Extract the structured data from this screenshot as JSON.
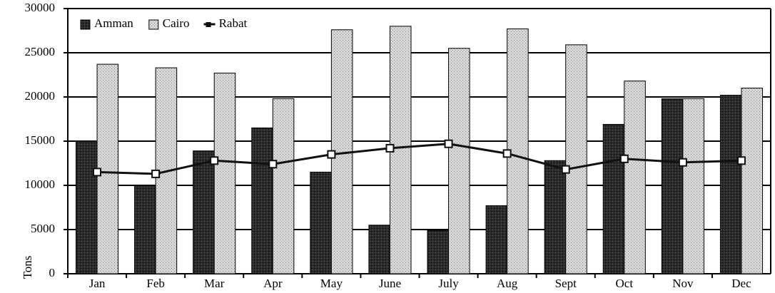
{
  "chart_data": {
    "type": "bar",
    "y_label": "Tons",
    "categories": [
      "Jan",
      "Feb",
      "Mar",
      "Apr",
      "May",
      "June",
      "July",
      "Aug",
      "Sept",
      "Oct",
      "Nov",
      "Dec"
    ],
    "series": [
      {
        "name": "Amman",
        "type": "bar",
        "color": "#2a2a2a",
        "values": [
          15000,
          10000,
          13900,
          16500,
          11500,
          5500,
          4900,
          7700,
          12800,
          16900,
          19800,
          20200
        ]
      },
      {
        "name": "Cairo",
        "type": "bar",
        "color": "#d8d8d8",
        "values": [
          23700,
          23300,
          22700,
          19800,
          27600,
          28000,
          25500,
          27700,
          25900,
          21800,
          19800,
          21000
        ]
      },
      {
        "name": "Rabat",
        "type": "line",
        "color": "#111111",
        "values": [
          11500,
          11300,
          12800,
          12400,
          13500,
          14200,
          14700,
          13600,
          11800,
          13000,
          12600,
          12800
        ]
      }
    ],
    "ylim": [
      0,
      30000
    ],
    "yticks": [
      0,
      5000,
      10000,
      15000,
      20000,
      25000,
      30000
    ],
    "grid": true,
    "legend": "top-left"
  }
}
